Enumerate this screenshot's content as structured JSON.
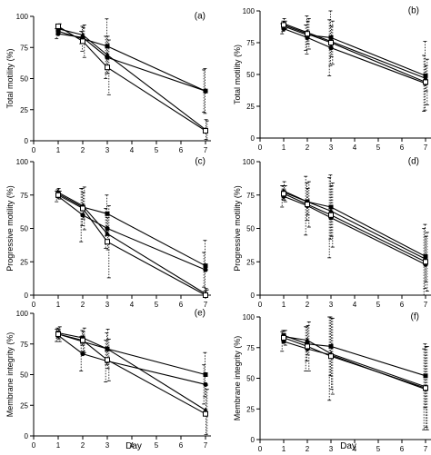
{
  "figure": {
    "shared_xlabel": "Day"
  },
  "chart_data": [
    {
      "panel": "(a)",
      "type": "line",
      "ylabel": "Total motility (%)",
      "xlabel": "",
      "xlim": [
        0,
        7
      ],
      "ylim": [
        0,
        100
      ],
      "xticks": [
        0,
        1,
        2,
        3,
        4,
        5,
        6,
        7
      ],
      "yticks": [
        0,
        25,
        50,
        75,
        100
      ],
      "series": [
        {
          "marker": "circle-filled",
          "points": [
            [
              1,
              86,
              4
            ],
            [
              2,
              83,
              5
            ],
            [
              3,
              67,
              17
            ],
            [
              7,
              40,
              17
            ]
          ]
        },
        {
          "marker": "square-filled",
          "points": [
            [
              1,
              88,
              3
            ],
            [
              2,
              82,
              10
            ],
            [
              3,
              76,
              22
            ],
            [
              7,
              40,
              18
            ]
          ]
        },
        {
          "marker": "triangle-filled",
          "points": [
            [
              1,
              90,
              3
            ],
            [
              2,
              85,
              6
            ],
            [
              3,
              69,
              15
            ],
            [
              7,
              9,
              8
            ]
          ]
        },
        {
          "marker": "square-open",
          "points": [
            [
              1,
              92,
              2
            ],
            [
              2,
              80,
              13
            ],
            [
              3,
              59,
              22
            ],
            [
              7,
              8,
              8
            ]
          ]
        }
      ]
    },
    {
      "panel": "(b)",
      "type": "line",
      "ylabel": "Total motility (%)",
      "xlabel": "",
      "xlim": [
        0,
        7
      ],
      "ylim": [
        0,
        100
      ],
      "xticks": [
        0,
        1,
        2,
        3,
        4,
        5,
        6,
        7
      ],
      "yticks": [
        0,
        25,
        50,
        75,
        100
      ],
      "series": [
        {
          "marker": "circle-filled",
          "points": [
            [
              1,
              86,
              4
            ],
            [
              2,
              79,
              10
            ],
            [
              3,
              71,
              22
            ],
            [
              7,
              43,
              22
            ]
          ]
        },
        {
          "marker": "square-filled",
          "points": [
            [
              1,
              88,
              4
            ],
            [
              2,
              81,
              15
            ],
            [
              3,
              79,
              22
            ],
            [
              7,
              49,
              27
            ]
          ]
        },
        {
          "marker": "triangle-filled",
          "points": [
            [
              1,
              90,
              4
            ],
            [
              2,
              83,
              9
            ],
            [
              3,
              76,
              12
            ],
            [
              7,
              47,
              10
            ]
          ]
        },
        {
          "marker": "square-open",
          "points": [
            [
              1,
              89,
              3
            ],
            [
              2,
              82,
              12
            ],
            [
              3,
              75,
              17
            ],
            [
              7,
              44,
              18
            ]
          ]
        }
      ]
    },
    {
      "panel": "(c)",
      "type": "line",
      "ylabel": "Progressive motility (%)",
      "xlabel": "",
      "xlim": [
        0,
        7
      ],
      "ylim": [
        0,
        100
      ],
      "xticks": [
        0,
        1,
        2,
        3,
        4,
        5,
        6,
        7
      ],
      "yticks": [
        0,
        25,
        50,
        75,
        100
      ],
      "series": [
        {
          "marker": "circle-filled",
          "points": [
            [
              1,
              74,
              4
            ],
            [
              2,
              60,
              20
            ],
            [
              3,
              50,
              15
            ],
            [
              7,
              19,
              13
            ]
          ]
        },
        {
          "marker": "square-filled",
          "points": [
            [
              1,
              76,
              3
            ],
            [
              2,
              66,
              14
            ],
            [
              3,
              61,
              14
            ],
            [
              7,
              22,
              19
            ]
          ]
        },
        {
          "marker": "triangle-filled",
          "points": [
            [
              1,
              77,
              3
            ],
            [
              2,
              67,
              10
            ],
            [
              3,
              46,
              12
            ],
            [
              7,
              1,
              4
            ]
          ]
        },
        {
          "marker": "square-open",
          "points": [
            [
              1,
              75,
              3
            ],
            [
              2,
              65,
              16
            ],
            [
              3,
              40,
              27
            ],
            [
              7,
              0,
              4
            ]
          ]
        }
      ]
    },
    {
      "panel": "(d)",
      "type": "line",
      "ylabel": "Progressive motility (%)",
      "xlabel": "",
      "xlim": [
        0,
        7
      ],
      "ylim": [
        0,
        100
      ],
      "xticks": [
        0,
        1,
        2,
        3,
        4,
        5,
        6,
        7
      ],
      "yticks": [
        0,
        25,
        50,
        75,
        100
      ],
      "series": [
        {
          "marker": "circle-filled",
          "points": [
            [
              1,
              74,
              8
            ],
            [
              2,
              67,
              22
            ],
            [
              3,
              58,
              30
            ],
            [
              7,
              23,
              27
            ]
          ]
        },
        {
          "marker": "square-filled",
          "points": [
            [
              1,
              77,
              5
            ],
            [
              2,
              70,
              14
            ],
            [
              3,
              66,
              24
            ],
            [
              7,
              29,
              24
            ]
          ]
        },
        {
          "marker": "triangle-filled",
          "points": [
            [
              1,
              78,
              7
            ],
            [
              2,
              70,
              10
            ],
            [
              3,
              63,
              19
            ],
            [
              7,
              27,
              17
            ]
          ]
        },
        {
          "marker": "square-open",
          "points": [
            [
              1,
              76,
              6
            ],
            [
              2,
              68,
              17
            ],
            [
              3,
              60,
              24
            ],
            [
              7,
              25,
              22
            ]
          ]
        }
      ]
    },
    {
      "panel": "(e)",
      "type": "line",
      "ylabel": "Membrane integrity (%)",
      "xlabel": "Day",
      "xlim": [
        0,
        7
      ],
      "ylim": [
        0,
        100
      ],
      "xticks": [
        0,
        1,
        2,
        3,
        4,
        5,
        6,
        7
      ],
      "yticks": [
        0,
        25,
        50,
        75,
        100
      ],
      "series": [
        {
          "marker": "circle-filled",
          "points": [
            [
              1,
              82,
              5
            ],
            [
              2,
              67,
              14
            ],
            [
              3,
              61,
              17
            ],
            [
              7,
              42,
              16
            ]
          ]
        },
        {
          "marker": "square-filled",
          "points": [
            [
              1,
              84,
              4
            ],
            [
              2,
              80,
              6
            ],
            [
              3,
              71,
              13
            ],
            [
              7,
              50,
              18
            ]
          ]
        },
        {
          "marker": "triangle-filled",
          "points": [
            [
              1,
              83,
              4
            ],
            [
              2,
              77,
              8
            ],
            [
              3,
              71,
              16
            ],
            [
              7,
              21,
              20
            ]
          ]
        },
        {
          "marker": "square-open",
          "points": [
            [
              1,
              83,
              6
            ],
            [
              2,
              78,
              10
            ],
            [
              3,
              62,
              17
            ],
            [
              7,
              18,
              20
            ]
          ]
        }
      ]
    },
    {
      "panel": "(f)",
      "type": "line",
      "ylabel": "Membrane integrity (%)",
      "xlabel": "Day",
      "xlim": [
        0,
        7
      ],
      "ylim": [
        0,
        100
      ],
      "xticks": [
        0,
        1,
        2,
        3,
        4,
        5,
        6,
        7
      ],
      "yticks": [
        0,
        25,
        50,
        75,
        100
      ],
      "series": [
        {
          "marker": "circle-filled",
          "points": [
            [
              1,
              80,
              8
            ],
            [
              2,
              74,
              18
            ],
            [
              3,
              69,
              37
            ],
            [
              7,
              41,
              33
            ]
          ]
        },
        {
          "marker": "square-filled",
          "points": [
            [
              1,
              85,
              4
            ],
            [
              2,
              78,
              14
            ],
            [
              3,
              76,
              24
            ],
            [
              7,
              52,
              26
            ]
          ]
        },
        {
          "marker": "triangle-filled",
          "points": [
            [
              1,
              84,
              5
            ],
            [
              2,
              81,
              12
            ],
            [
              3,
              70,
              29
            ],
            [
              7,
              43,
              33
            ]
          ]
        },
        {
          "marker": "square-open",
          "points": [
            [
              1,
              83,
              6
            ],
            [
              2,
              76,
              20
            ],
            [
              3,
              68,
              31
            ],
            [
              7,
              42,
              34
            ]
          ]
        }
      ]
    }
  ]
}
